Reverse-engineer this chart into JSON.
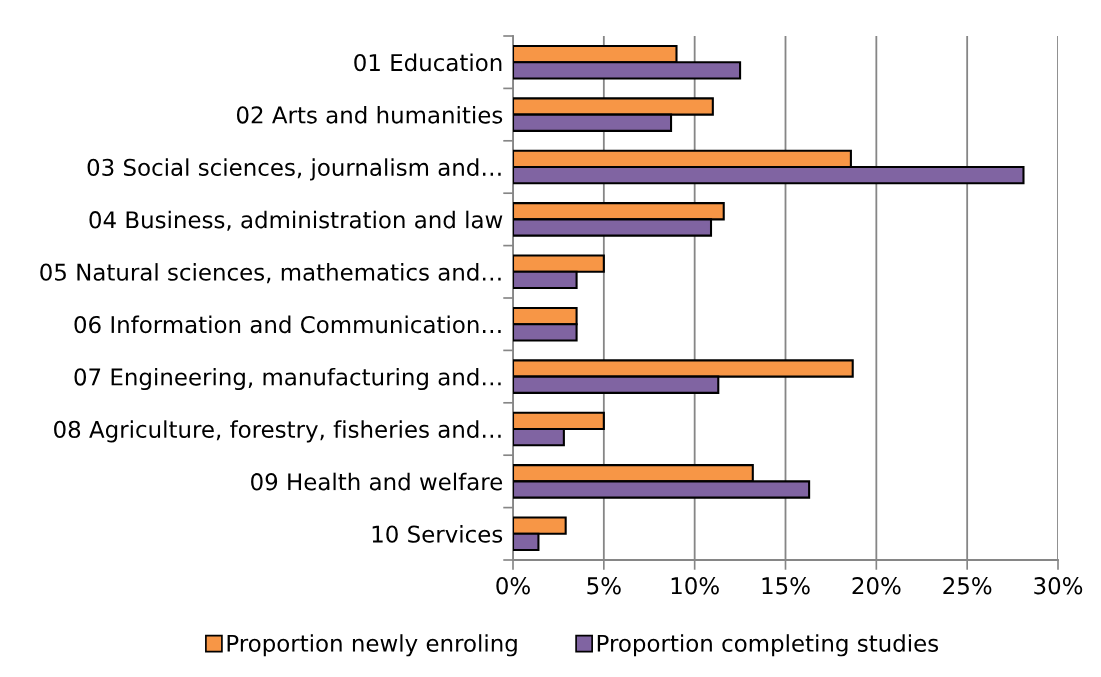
{
  "chart_data": {
    "type": "bar",
    "orientation": "horizontal",
    "categories": [
      "01 Education",
      "02 Arts and humanities",
      "03 Social sciences, journalism and…",
      "04 Business, administration and law",
      "05 Natural sciences, mathematics and…",
      "06 Information and Communication…",
      "07 Engineering, manufacturing and…",
      "08 Agriculture, forestry, fisheries and…",
      "09 Health and welfare",
      "10 Services"
    ],
    "series": [
      {
        "name": "Proportion newly enroling",
        "color": "#f79646",
        "values": [
          9.0,
          11.0,
          18.6,
          11.6,
          5.0,
          3.5,
          18.7,
          5.0,
          13.2,
          2.9
        ]
      },
      {
        "name": "Proportion completing studies",
        "color": "#8064a2",
        "values": [
          12.5,
          8.7,
          28.1,
          10.9,
          3.5,
          3.5,
          11.3,
          2.8,
          16.3,
          1.4
        ]
      }
    ],
    "xlim": [
      0,
      30
    ],
    "xticks": [
      {
        "value": 0,
        "label": "0%"
      },
      {
        "value": 5,
        "label": "5%"
      },
      {
        "value": 10,
        "label": "10%"
      },
      {
        "value": 15,
        "label": "15%"
      },
      {
        "value": 20,
        "label": "20%"
      },
      {
        "value": 25,
        "label": "25%"
      },
      {
        "value": 30,
        "label": "30%"
      }
    ],
    "grid": "x",
    "legend": "bottom"
  }
}
